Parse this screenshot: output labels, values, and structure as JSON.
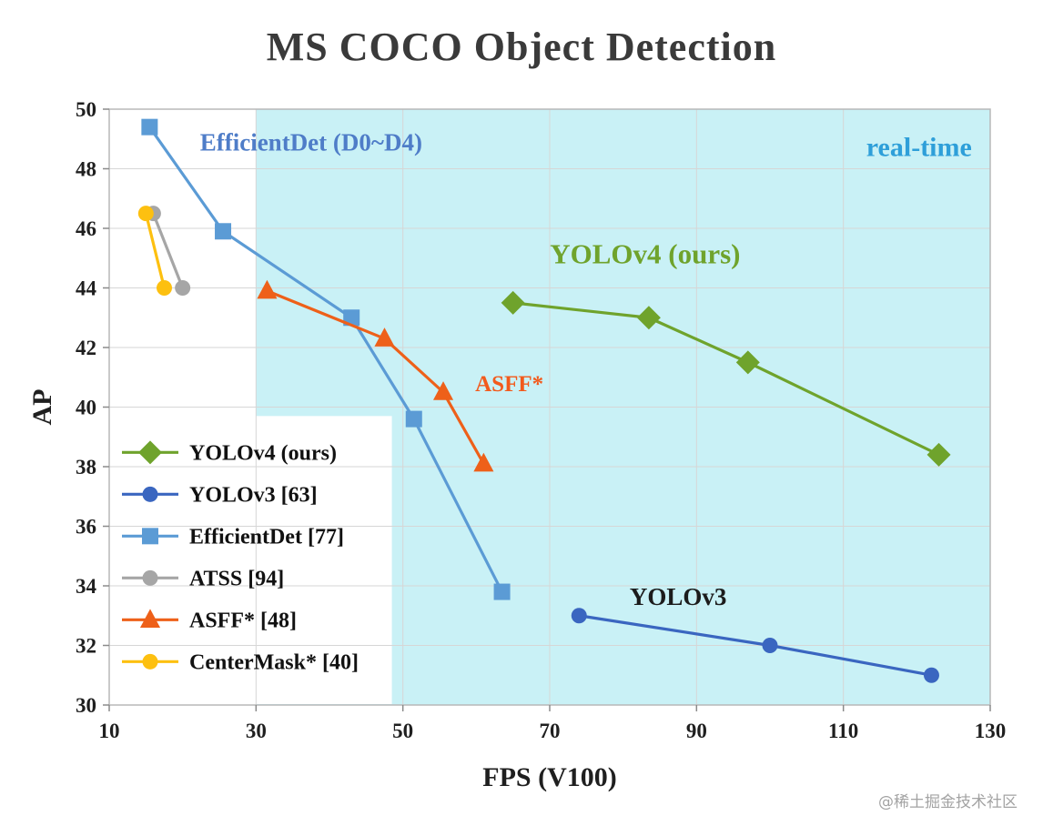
{
  "page": {
    "watermark": "@稀土掘金技术社区"
  },
  "chart_data": {
    "type": "line",
    "title": "MS COCO Object Detection",
    "xlabel": "FPS (V100)",
    "ylabel": "AP",
    "xlim": [
      10,
      130
    ],
    "ylim": [
      30,
      50
    ],
    "xticks": [
      10,
      30,
      50,
      70,
      90,
      110,
      130
    ],
    "yticks": [
      30,
      32,
      34,
      36,
      38,
      40,
      42,
      44,
      46,
      48,
      50
    ],
    "grid": true,
    "legend_position": "bottom-left",
    "realtime_region": {
      "label": "real-time",
      "x_start": 30,
      "x_end": 130,
      "fill": "#c9f1f6",
      "label_color": "#2e9fd9"
    },
    "legend_panel": {
      "x_start": 10,
      "x_end": 48.5,
      "y_top": 39.7,
      "fill": "#ffffff"
    },
    "series": [
      {
        "name": "YOLOv4 (ours)",
        "color": "#6fa32c",
        "marker": "diamond",
        "points": [
          [
            65,
            43.5
          ],
          [
            83.5,
            43.0
          ],
          [
            97,
            41.5
          ],
          [
            123,
            38.4
          ]
        ]
      },
      {
        "name": "YOLOv3 [63]",
        "color": "#3a66c0",
        "marker": "circle",
        "points": [
          [
            74,
            33.0
          ],
          [
            100,
            32.0
          ],
          [
            122,
            31.0
          ]
        ]
      },
      {
        "name": "EfficientDet [77]",
        "color": "#5b9bd5",
        "marker": "square",
        "points": [
          [
            15.5,
            49.4
          ],
          [
            25.5,
            45.9
          ],
          [
            43,
            43.0
          ],
          [
            51.5,
            39.6
          ],
          [
            63.5,
            33.8
          ]
        ]
      },
      {
        "name": "ATSS [94]",
        "color": "#a6a6a6",
        "marker": "circle",
        "points": [
          [
            16,
            46.5
          ],
          [
            20,
            44.0
          ]
        ]
      },
      {
        "name": "ASFF* [48]",
        "color": "#ee6019",
        "marker": "triangle",
        "points": [
          [
            31.5,
            43.9
          ],
          [
            47.5,
            42.3
          ],
          [
            55.5,
            40.5
          ],
          [
            61,
            38.1
          ]
        ]
      },
      {
        "name": "CenterMask* [40]",
        "color": "#fdc010",
        "marker": "circle",
        "points": [
          [
            15,
            46.5
          ],
          [
            17.5,
            44.0
          ]
        ]
      }
    ],
    "annotations": [
      {
        "text": "EfficientDet (D0~D4)",
        "x": 37.5,
        "y": 48.9,
        "color": "#4f7dc8",
        "size": 27,
        "anchor": "middle"
      },
      {
        "text": "real-time",
        "x": 127.5,
        "y": 48.75,
        "color": "#2e9fd9",
        "size": 30,
        "anchor": "end"
      },
      {
        "text": "YOLOv4 (ours)",
        "x": 83,
        "y": 45.15,
        "color": "#6fa32c",
        "size": 31,
        "anchor": "middle"
      },
      {
        "text": "ASFF*",
        "x": 64.5,
        "y": 40.8,
        "color": "#f25a1c",
        "size": 25,
        "anchor": "middle"
      },
      {
        "text": "YOLOv3",
        "x": 87.5,
        "y": 33.65,
        "color": "#1c1c1c",
        "size": 27,
        "anchor": "middle"
      }
    ]
  }
}
